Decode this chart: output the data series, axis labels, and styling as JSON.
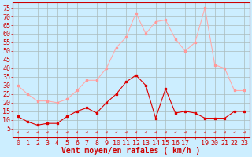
{
  "xlabel": "Vent moyen/en rafales ( km/h )",
  "x_labels": [
    "0",
    "1",
    "2",
    "3",
    "4",
    "5",
    "6",
    "7",
    "8",
    "9",
    "10",
    "11",
    "12",
    "13",
    "14",
    "15",
    "16",
    "17",
    "",
    "19",
    "20",
    "21",
    "22",
    "23"
  ],
  "x_values": [
    0,
    1,
    2,
    3,
    4,
    5,
    6,
    7,
    8,
    9,
    10,
    11,
    12,
    13,
    14,
    15,
    16,
    17,
    18,
    19,
    20,
    21,
    22,
    23
  ],
  "rafales": [
    30,
    25,
    21,
    21,
    20,
    22,
    27,
    33,
    33,
    40,
    52,
    58,
    72,
    60,
    67,
    68,
    57,
    50,
    55,
    75,
    42,
    40,
    27,
    27
  ],
  "moyen": [
    12,
    9,
    7,
    8,
    8,
    12,
    15,
    17,
    14,
    20,
    25,
    32,
    36,
    30,
    11,
    28,
    14,
    15,
    14,
    11,
    11,
    11,
    15,
    15
  ],
  "bg_color": "#cceeff",
  "grid_color": "#aabbbb",
  "line_color_rafales": "#ffaaaa",
  "line_color_moyen": "#dd0000",
  "marker_color_rafales": "#ff9999",
  "marker_color_moyen": "#dd0000",
  "ylim": [
    0,
    78
  ],
  "yticks": [
    5,
    10,
    15,
    20,
    25,
    30,
    35,
    40,
    45,
    50,
    55,
    60,
    65,
    70,
    75
  ],
  "xlabel_color": "#cc0000",
  "xlabel_fontsize": 7,
  "tick_fontsize": 6,
  "axis_color": "#cc0000",
  "arrow_color": "#dd4444",
  "figwidth": 3.2,
  "figheight": 2.0,
  "dpi": 100
}
